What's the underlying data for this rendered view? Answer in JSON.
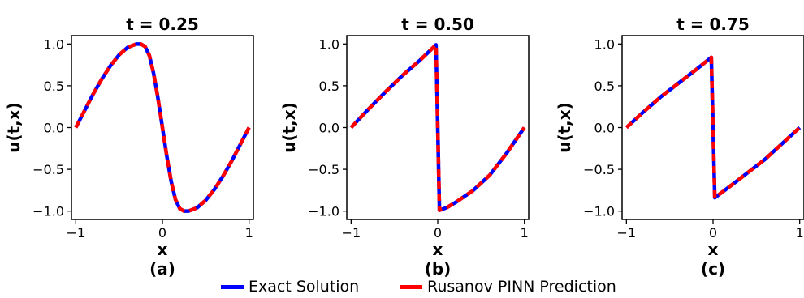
{
  "legend": {
    "exact_label": "Exact Solution",
    "pred_label": "Rusanov PINN Prediction"
  },
  "colors": {
    "exact": "#0000ff",
    "prediction": "#ff0000"
  },
  "chart_data": [
    {
      "type": "line",
      "title": "t = 0.25",
      "panel_label": "(a)",
      "xlabel": "x",
      "ylabel": "u(t,x)",
      "xlim": [
        -1.05,
        1.05
      ],
      "ylim": [
        -1.1,
        1.1
      ],
      "xticks": [
        -1,
        0,
        1
      ],
      "yticks": [
        1.0,
        0.5,
        0.0,
        -0.5,
        -1.0
      ],
      "xtick_labels": [
        "−1",
        "0",
        "1"
      ],
      "ytick_labels": [
        "1.0",
        "0.5",
        "0.0",
        "−0.5",
        "−1.0"
      ],
      "series": [
        {
          "name": "Exact Solution",
          "x": [
            -1,
            -0.9,
            -0.8,
            -0.7,
            -0.6,
            -0.5,
            -0.4,
            -0.3,
            -0.25,
            -0.2,
            -0.15,
            -0.1,
            -0.05,
            0,
            0.05,
            0.1,
            0.15,
            0.2,
            0.25,
            0.3,
            0.4,
            0.5,
            0.6,
            0.7,
            0.8,
            0.9,
            1
          ],
          "y": [
            0,
            0.2,
            0.4,
            0.58,
            0.74,
            0.87,
            0.96,
            1.0,
            1.0,
            0.97,
            0.86,
            0.64,
            0.34,
            0,
            -0.34,
            -0.64,
            -0.86,
            -0.97,
            -1.0,
            -1.0,
            -0.96,
            -0.87,
            -0.74,
            -0.58,
            -0.4,
            -0.2,
            0
          ]
        },
        {
          "name": "Rusanov PINN Prediction",
          "x": [
            -1,
            -0.9,
            -0.8,
            -0.7,
            -0.6,
            -0.5,
            -0.4,
            -0.3,
            -0.25,
            -0.2,
            -0.15,
            -0.1,
            -0.05,
            0,
            0.05,
            0.1,
            0.15,
            0.2,
            0.25,
            0.3,
            0.4,
            0.5,
            0.6,
            0.7,
            0.8,
            0.9,
            1
          ],
          "y": [
            0,
            0.2,
            0.4,
            0.58,
            0.74,
            0.87,
            0.96,
            1.0,
            1.0,
            0.97,
            0.86,
            0.64,
            0.34,
            0,
            -0.34,
            -0.64,
            -0.86,
            -0.97,
            -1.0,
            -1.0,
            -0.96,
            -0.87,
            -0.74,
            -0.58,
            -0.4,
            -0.2,
            0
          ]
        }
      ]
    },
    {
      "type": "line",
      "title": "t = 0.50",
      "panel_label": "(b)",
      "xlabel": "x",
      "ylabel": "u(t,x)",
      "xlim": [
        -1.05,
        1.05
      ],
      "ylim": [
        -1.1,
        1.1
      ],
      "xticks": [
        -1,
        0,
        1
      ],
      "yticks": [
        1.0,
        0.5,
        0.0,
        -0.5,
        -1.0
      ],
      "xtick_labels": [
        "−1",
        "0",
        "1"
      ],
      "ytick_labels": [
        "1.0",
        "0.5",
        "0.0",
        "−0.5",
        "−1.0"
      ],
      "series": [
        {
          "name": "Exact Solution",
          "x": [
            -1,
            -0.8,
            -0.6,
            -0.4,
            -0.2,
            -0.1,
            -0.02,
            0,
            0.02,
            0.1,
            0.2,
            0.4,
            0.6,
            0.8,
            1
          ],
          "y": [
            0,
            0.22,
            0.43,
            0.63,
            0.81,
            0.91,
            0.99,
            0,
            -0.99,
            -0.96,
            -0.9,
            -0.76,
            -0.57,
            -0.3,
            0
          ]
        },
        {
          "name": "Rusanov PINN Prediction",
          "x": [
            -1,
            -0.8,
            -0.6,
            -0.4,
            -0.2,
            -0.1,
            -0.02,
            0,
            0.02,
            0.1,
            0.2,
            0.4,
            0.6,
            0.8,
            1
          ],
          "y": [
            0,
            0.22,
            0.43,
            0.63,
            0.81,
            0.91,
            0.99,
            0,
            -0.99,
            -0.96,
            -0.9,
            -0.76,
            -0.57,
            -0.3,
            0
          ]
        }
      ]
    },
    {
      "type": "line",
      "title": "t = 0.75",
      "panel_label": "(c)",
      "xlabel": "x",
      "ylabel": "u(t,x)",
      "xlim": [
        -1.05,
        1.05
      ],
      "ylim": [
        -1.1,
        1.1
      ],
      "xticks": [
        -1,
        0,
        1
      ],
      "yticks": [
        1.0,
        0.5,
        0.0,
        -0.5,
        -1.0
      ],
      "xtick_labels": [
        "−1",
        "0",
        "1"
      ],
      "ytick_labels": [
        "1.0",
        "0.5",
        "0.0",
        "−0.5",
        "−1.0"
      ],
      "series": [
        {
          "name": "Exact Solution",
          "x": [
            -1,
            -0.8,
            -0.6,
            -0.4,
            -0.2,
            -0.02,
            0,
            0.02,
            0.2,
            0.4,
            0.6,
            0.8,
            1
          ],
          "y": [
            0,
            0.19,
            0.37,
            0.53,
            0.69,
            0.84,
            0,
            -0.84,
            -0.7,
            -0.54,
            -0.38,
            -0.19,
            0
          ]
        },
        {
          "name": "Rusanov PINN Prediction",
          "x": [
            -1,
            -0.8,
            -0.6,
            -0.4,
            -0.2,
            -0.02,
            0,
            0.02,
            0.2,
            0.4,
            0.6,
            0.8,
            1
          ],
          "y": [
            0,
            0.19,
            0.37,
            0.53,
            0.69,
            0.84,
            0,
            -0.84,
            -0.7,
            -0.54,
            -0.38,
            -0.19,
            0
          ]
        }
      ]
    }
  ]
}
